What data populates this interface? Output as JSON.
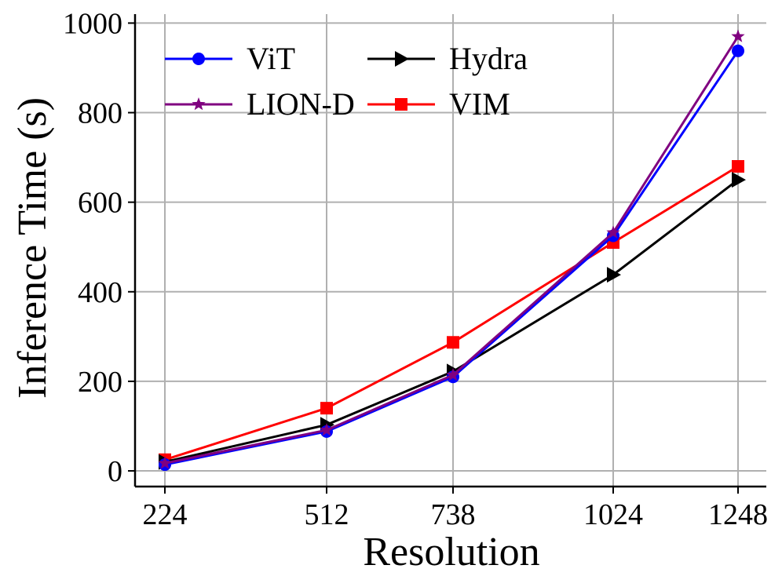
{
  "chart_data": {
    "type": "line",
    "title": "",
    "xlabel": "Resolution",
    "ylabel": "Inference Time (s)",
    "x_categories": [
      "224",
      "512",
      "738",
      "1024",
      "1248"
    ],
    "ylim": [
      -35,
      1020
    ],
    "yticks": [
      0,
      200,
      400,
      600,
      800,
      1000
    ],
    "grid": true,
    "legend_position": "top-left",
    "series": [
      {
        "name": "ViT",
        "color": "#0000ff",
        "marker": "circle",
        "values": [
          14,
          88,
          210,
          525,
          938
        ]
      },
      {
        "name": "Hydra",
        "color": "#000000",
        "marker": "triangle-right",
        "values": [
          20,
          103,
          222,
          438,
          650
        ]
      },
      {
        "name": "LION-D",
        "color": "#800080",
        "marker": "star",
        "values": [
          17,
          91,
          214,
          532,
          970
        ]
      },
      {
        "name": "VIM",
        "color": "#ff0000",
        "marker": "square",
        "values": [
          25,
          140,
          287,
          510,
          680
        ]
      }
    ]
  }
}
